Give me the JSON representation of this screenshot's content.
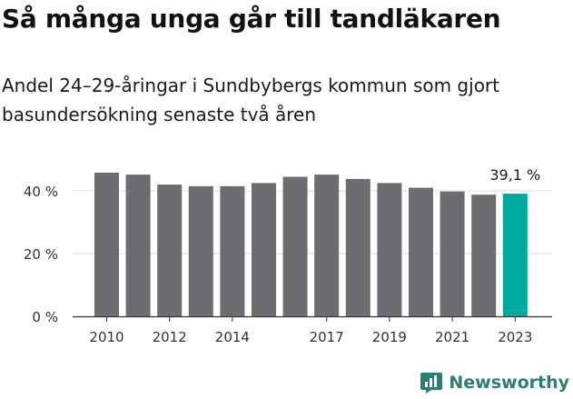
{
  "title": "Så många unga går till tandläkaren",
  "subtitle": "Andel 24–29-åringar i Sundbybergs kommun som gjort basundersökning senaste två åren",
  "colors": {
    "bar": "#6d6c70",
    "highlight": "#00a99d",
    "grid": "#dddddd",
    "axis": "#333333"
  },
  "brand": {
    "name": "Newsworthy",
    "icon": "newsworthy-logo-icon"
  },
  "chart_data": {
    "type": "bar",
    "categories": [
      "2010",
      "2011",
      "2012",
      "2013",
      "2014",
      "2015",
      "2016",
      "2017",
      "2018",
      "2019",
      "2020",
      "2021",
      "2022",
      "2023"
    ],
    "values": [
      45.8,
      45.2,
      42.0,
      41.5,
      41.5,
      42.5,
      44.5,
      45.2,
      43.8,
      42.5,
      41.0,
      39.8,
      38.8,
      39.1
    ],
    "ylim": [
      0,
      45.8
    ],
    "yticks": [
      0,
      20,
      40
    ],
    "ytick_labels": [
      "0 %",
      "20 %",
      "40 %"
    ],
    "xtick_labels": [
      "2010",
      "2012",
      "2014",
      "2017",
      "2019",
      "2021",
      "2023"
    ],
    "highlight_index": 13,
    "annotation": "39,1 %",
    "grid": true
  }
}
